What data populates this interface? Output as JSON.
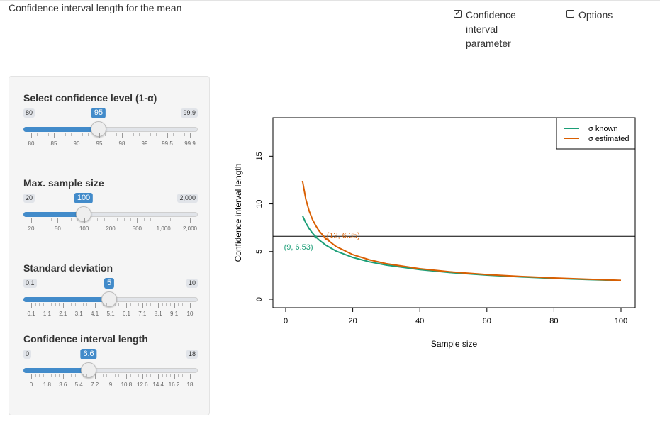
{
  "app_title": "Confidence interval length for the mean",
  "checkboxes": [
    {
      "label": "Confidence interval parameter",
      "checked": true
    },
    {
      "label": "Options",
      "checked": false
    }
  ],
  "sliders": [
    {
      "label": "Select confidence level (1-α)",
      "min": 80,
      "max": 99.9,
      "value": 95,
      "min_label": "80",
      "max_label": "99.9",
      "value_label": "95",
      "ticks": [
        "80",
        "85",
        "90",
        "95",
        "98",
        "99",
        "99.5",
        "99.9"
      ]
    },
    {
      "label": "Max. sample size",
      "min": 20,
      "max": 2000,
      "value": 100,
      "min_label": "20",
      "max_label": "2,000",
      "value_label": "100",
      "ticks": [
        "20",
        "50",
        "100",
        "200",
        "500",
        "1,000",
        "2,000"
      ]
    },
    {
      "label": "Standard deviation",
      "min": 0.1,
      "max": 10,
      "value": 5,
      "min_label": "0.1",
      "max_label": "10",
      "value_label": "5",
      "ticks": [
        "0.1",
        "1.1",
        "2.1",
        "3.1",
        "4.1",
        "5.1",
        "6.1",
        "7.1",
        "8.1",
        "9.1",
        "10"
      ]
    },
    {
      "label": "Confidence interval length",
      "min": 0,
      "max": 18,
      "value": 6.6,
      "min_label": "0",
      "max_label": "18",
      "value_label": "6.6",
      "ticks": [
        "0",
        "1.8",
        "3.6",
        "5.4",
        "7.2",
        "9",
        "10.8",
        "12.6",
        "14.4",
        "16.2",
        "18"
      ]
    }
  ],
  "chart_data": {
    "type": "line",
    "xlabel": "Sample size",
    "ylabel": "Confidence interval length",
    "xlim": [
      0,
      100
    ],
    "ylim": [
      0,
      18
    ],
    "x_ticks": [
      0,
      20,
      40,
      60,
      80,
      100
    ],
    "y_ticks": [
      0,
      5,
      10,
      15
    ],
    "hline": 6.6,
    "legend": {
      "position": "top-right",
      "entries": [
        "σ known",
        "σ estimated"
      ]
    },
    "colors": {
      "known": "#1b9e77",
      "estimated": "#d95f02"
    },
    "series": [
      {
        "name": "σ known",
        "x": [
          5,
          6,
          7,
          8,
          9,
          10,
          12,
          15,
          20,
          25,
          30,
          40,
          50,
          60,
          70,
          80,
          90,
          100
        ],
        "y": [
          8.77,
          8.0,
          7.41,
          6.93,
          6.53,
          6.2,
          5.66,
          5.06,
          4.38,
          3.92,
          3.58,
          3.1,
          2.77,
          2.53,
          2.34,
          2.19,
          2.07,
          1.96
        ]
      },
      {
        "name": "σ estimated",
        "x": [
          5,
          6,
          7,
          8,
          9,
          10,
          12,
          15,
          20,
          25,
          30,
          40,
          50,
          60,
          70,
          80,
          90,
          100
        ],
        "y": [
          12.42,
          10.49,
          9.25,
          8.36,
          7.69,
          7.15,
          6.35,
          5.54,
          4.68,
          4.13,
          3.73,
          3.2,
          2.84,
          2.58,
          2.39,
          2.23,
          2.1,
          1.98
        ]
      }
    ],
    "annotations": [
      {
        "text": "(9, 6.53)",
        "x": 9,
        "y": 6.53,
        "series": "σ known"
      },
      {
        "text": "(12, 6.35)",
        "x": 12,
        "y": 6.35,
        "series": "σ estimated"
      }
    ]
  }
}
